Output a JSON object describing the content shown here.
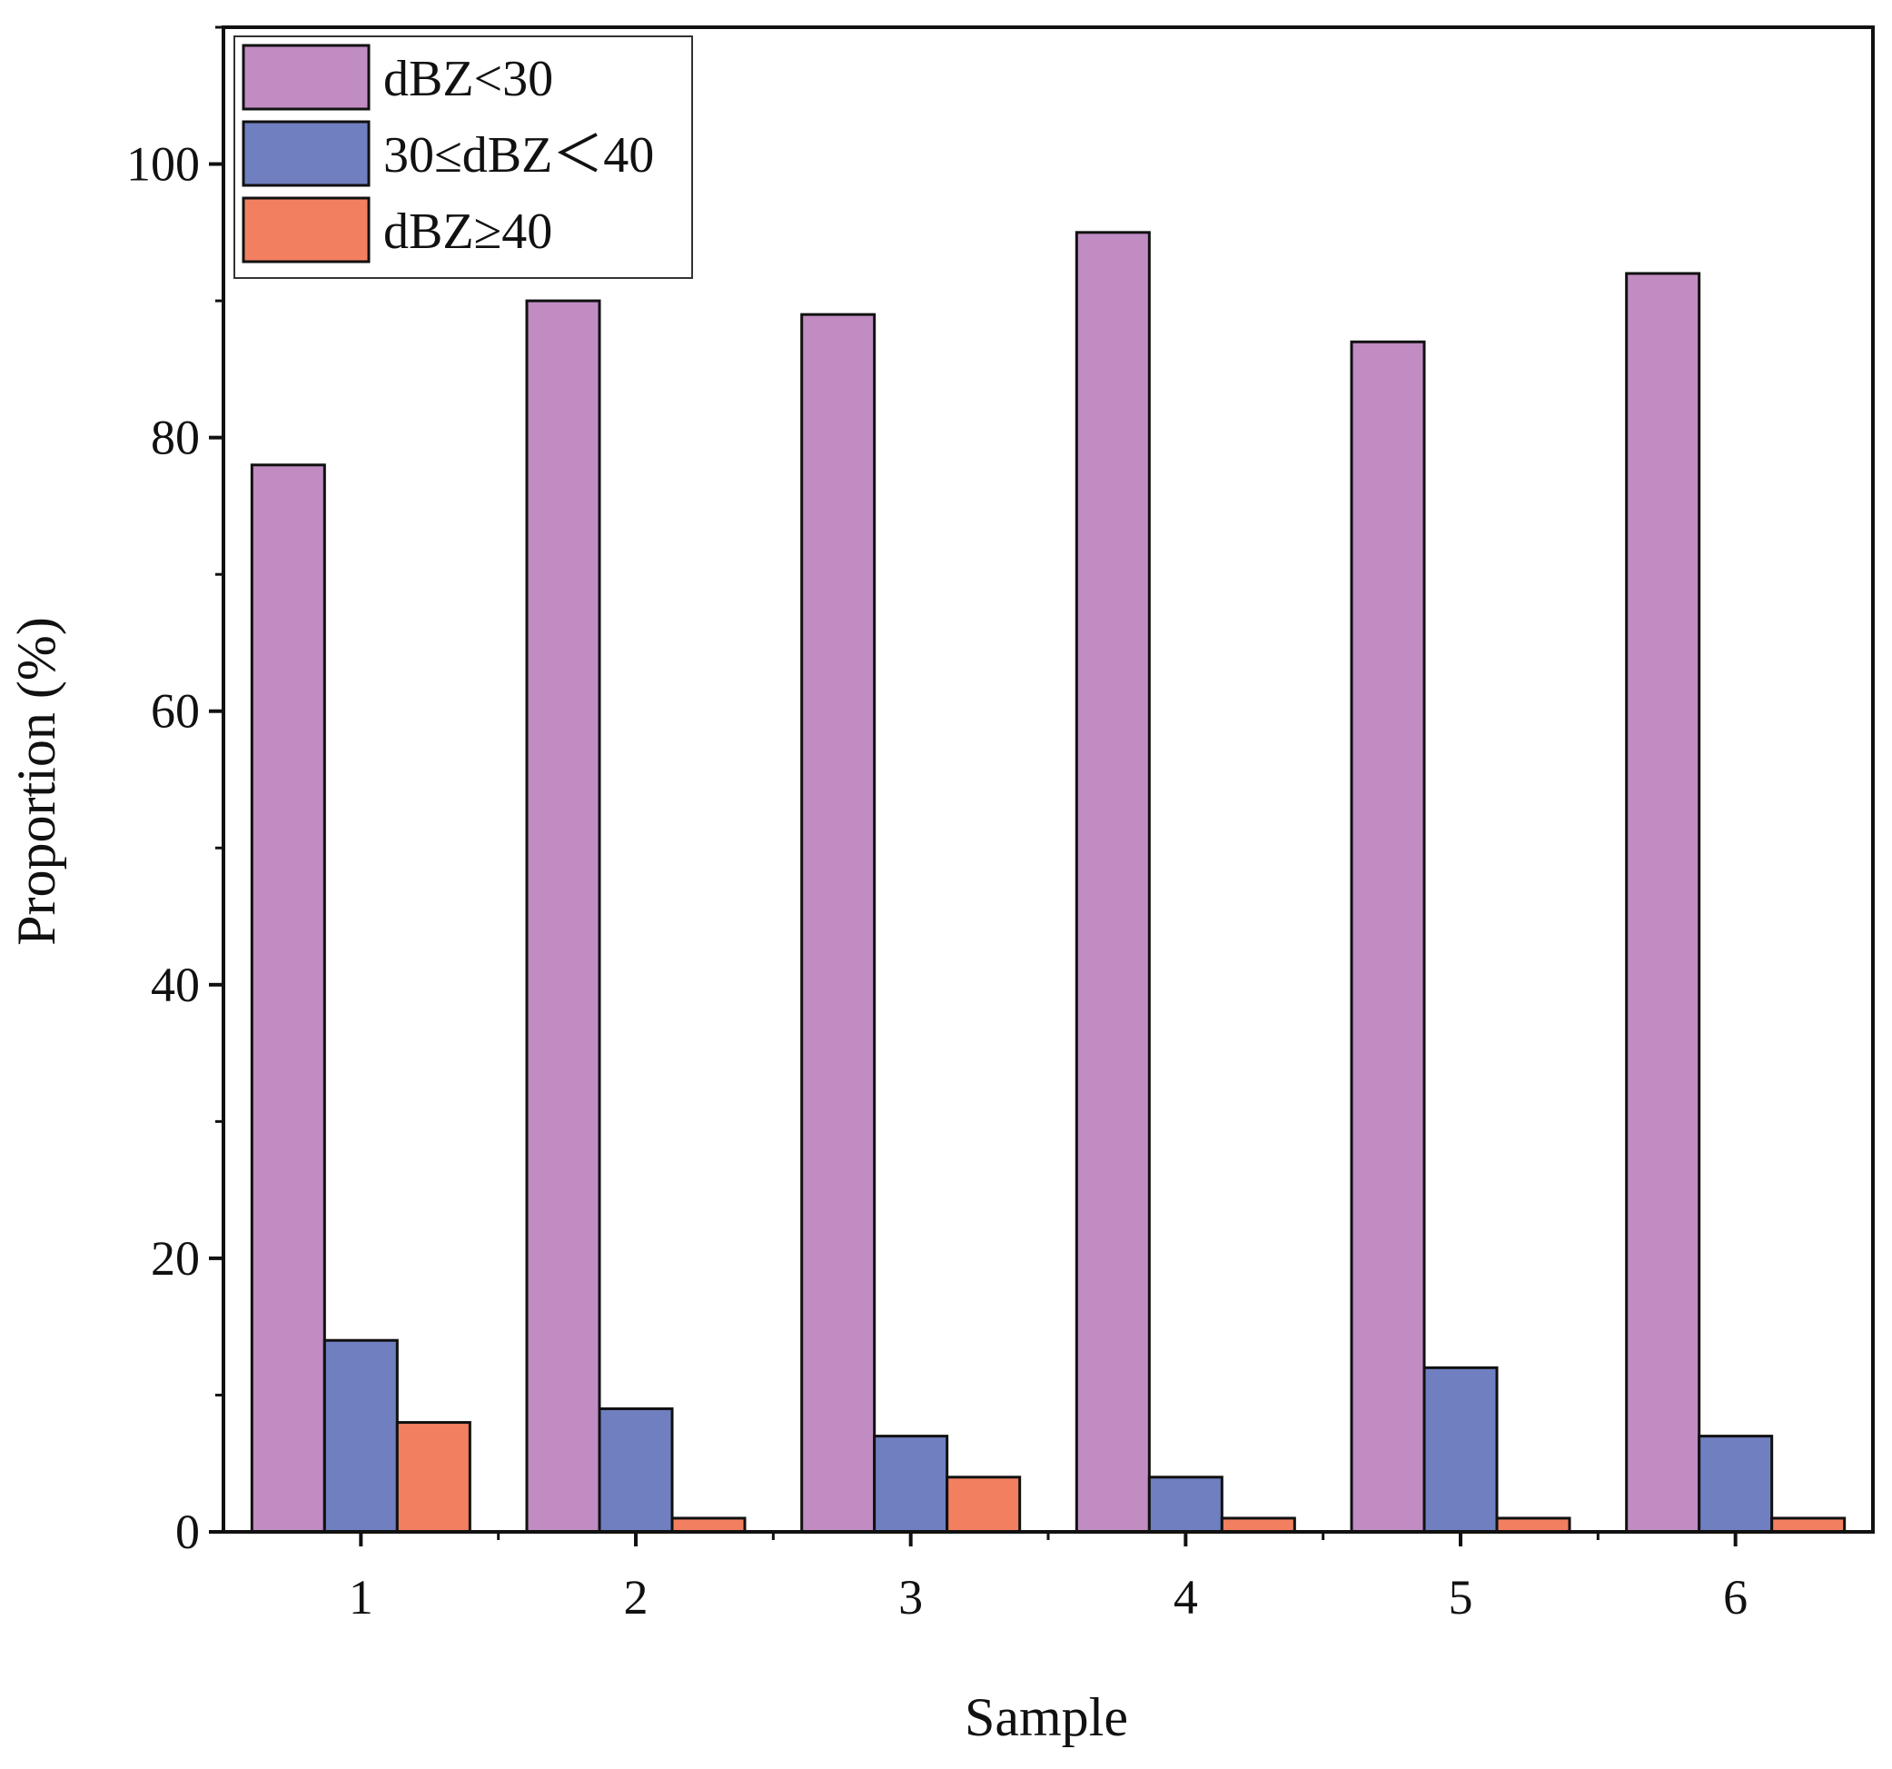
{
  "chart_data": {
    "type": "bar",
    "title": "",
    "xlabel": "Sample",
    "ylabel": "Proportion (%)",
    "categories": [
      "1",
      "2",
      "3",
      "4",
      "5",
      "6"
    ],
    "ylim": [
      0,
      110
    ],
    "yticks": [
      0,
      20,
      40,
      60,
      80,
      100
    ],
    "yticks_labels": [
      "0",
      "20",
      "40",
      "60",
      "80",
      "100"
    ],
    "grid": false,
    "legend_position": "top-left",
    "series": [
      {
        "name": "dBZ<30",
        "color": "#c08cc2",
        "values": [
          78,
          90,
          89,
          95,
          87,
          92
        ]
      },
      {
        "name": "30≤dBZ＜40",
        "color": "#6f7fc0",
        "values": [
          14,
          9,
          7,
          4,
          12,
          7
        ]
      },
      {
        "name": "dBZ≥40",
        "color": "#f28060",
        "values": [
          8,
          1,
          4,
          1,
          1,
          1
        ]
      }
    ]
  }
}
